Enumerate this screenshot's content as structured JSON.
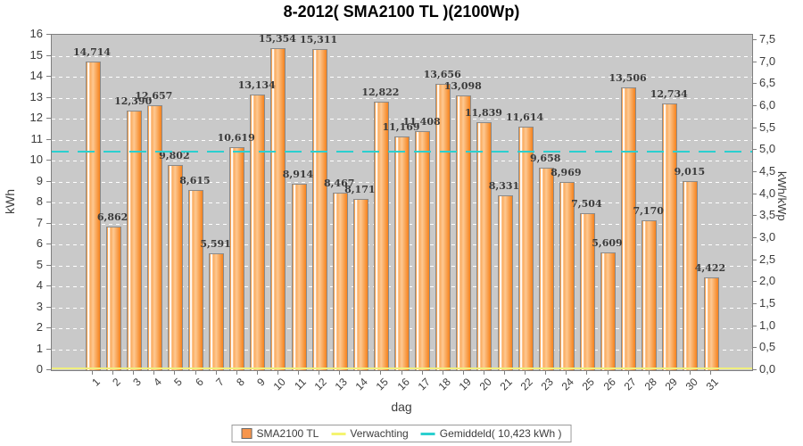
{
  "chart_data": {
    "type": "bar",
    "title": "8-2012( SMA2100 TL )(2100Wp)",
    "xlabel": "dag",
    "ylabel_left": "kWh",
    "ylabel_right": "kWh/kWp",
    "categories": [
      1,
      2,
      3,
      4,
      5,
      6,
      7,
      8,
      9,
      10,
      11,
      12,
      13,
      14,
      15,
      16,
      17,
      18,
      19,
      20,
      21,
      22,
      23,
      24,
      25,
      26,
      27,
      28,
      29,
      30,
      31
    ],
    "values": [
      14.714,
      6.862,
      12.39,
      12.657,
      9.802,
      8.615,
      5.591,
      10.619,
      13.134,
      15.354,
      8.914,
      15.311,
      8.467,
      8.171,
      12.822,
      11.169,
      11.408,
      13.656,
      13.098,
      11.839,
      8.331,
      11.614,
      9.658,
      8.969,
      7.504,
      5.609,
      13.506,
      7.17,
      12.734,
      9.015,
      4.422
    ],
    "value_labels": [
      "14,714",
      "6,862",
      "12,390",
      "12,657",
      "9,802",
      "8,615",
      "5,591",
      "10,619",
      "13,134",
      "15,354",
      "8,914",
      "15,311",
      "8,467",
      "8,171",
      "12,822",
      "11,169",
      "11,408",
      "13,656",
      "13,098",
      "11,839",
      "8,331",
      "11,614",
      "9,658",
      "8,969",
      "7,504",
      "5,609",
      "13,506",
      "7,170",
      "12,734",
      "9,015",
      "4,422"
    ],
    "ylim_left": [
      0,
      16
    ],
    "ytick_step_left": 1,
    "left_tick_labels": [
      "0",
      "1",
      "2",
      "3",
      "4",
      "5",
      "6",
      "7",
      "8",
      "9",
      "10",
      "11",
      "12",
      "13",
      "14",
      "15",
      "16"
    ],
    "ylim_right": [
      0,
      7.5
    ],
    "ytick_step_right": 0.5,
    "right_tick_labels": [
      "0,0",
      "0,5",
      "1,0",
      "1,5",
      "2,0",
      "2,5",
      "3,0",
      "3,5",
      "4,0",
      "4,5",
      "5,0",
      "5,5",
      "6,0",
      "6,5",
      "7,0",
      "7,5"
    ],
    "kwp_scale": 2.1,
    "average_value": 10.423,
    "expected_value": 0,
    "grid": true,
    "legend_position": "bottom",
    "legend": [
      {
        "label": "SMA2100 TL",
        "swatch": "square",
        "color": "#f6954c"
      },
      {
        "label": "Verwachting",
        "swatch": "line",
        "color": "#f5f470"
      },
      {
        "label": "Gemiddeld( 10,423 kWh )",
        "swatch": "line",
        "color": "#2bcfcf"
      }
    ],
    "colors": {
      "bar_fill": "#f99a3e",
      "bar_border": "#8a8a8a",
      "plot_background": "#c9c9c9",
      "grid_line": "#ffffff",
      "average_line": "#2bcfcf",
      "expected_line": "#f0ef7d",
      "text": "#3c3c3c"
    }
  }
}
